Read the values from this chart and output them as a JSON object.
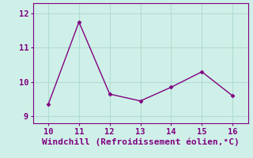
{
  "x": [
    10,
    11,
    12,
    13,
    14,
    15,
    16
  ],
  "y": [
    9.35,
    11.75,
    9.65,
    9.45,
    9.85,
    10.3,
    9.6
  ],
  "line_color": "#800080",
  "marker": "D",
  "marker_size": 2.5,
  "xlabel": "Windchill (Refroidissement éolien,°C)",
  "xlim": [
    9.5,
    16.5
  ],
  "ylim": [
    8.8,
    12.3
  ],
  "yticks": [
    9,
    10,
    11,
    12
  ],
  "xticks": [
    10,
    11,
    12,
    13,
    14,
    15,
    16
  ],
  "bg_color": "#cff0e8",
  "grid_color": "#b0ddd4",
  "label_color": "#800080",
  "font_size": 7.5,
  "xlabel_fontsize": 8
}
